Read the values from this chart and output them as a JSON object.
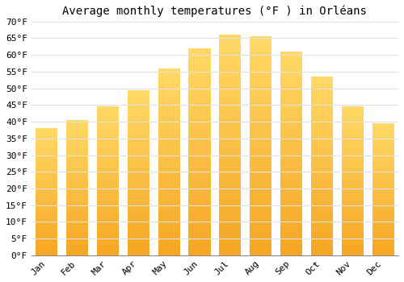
{
  "title": "Average monthly temperatures (°F ) in Orléans",
  "months": [
    "Jan",
    "Feb",
    "Mar",
    "Apr",
    "May",
    "Jun",
    "Jul",
    "Aug",
    "Sep",
    "Oct",
    "Nov",
    "Dec"
  ],
  "values": [
    38,
    40.5,
    44.5,
    49.5,
    56,
    62,
    66,
    65.5,
    61,
    53.5,
    44.5,
    39.5
  ],
  "bar_color_bottom": "#F5A623",
  "bar_color_top": "#FFD966",
  "background_color": "#FFFFFF",
  "grid_color": "#E0E0E0",
  "ylim": [
    0,
    70
  ],
  "ytick_step": 5,
  "title_fontsize": 10,
  "tick_fontsize": 8,
  "font_family": "monospace"
}
